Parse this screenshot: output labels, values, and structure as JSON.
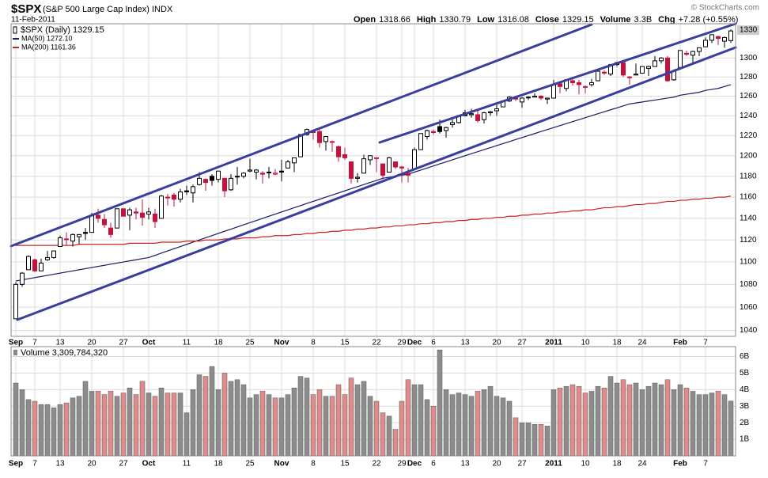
{
  "header": {
    "symbol": "$SPX",
    "name": "(S&P 500 Large Cap Index) INDX",
    "date": "11-Feb-2011",
    "credit": "© StockCharts.com",
    "quote": [
      [
        "Open",
        "1318.66"
      ],
      [
        "High",
        "1330.79"
      ],
      [
        "Low",
        "1316.08"
      ],
      [
        "Close",
        "1329.15"
      ],
      [
        "Volume",
        "3.3B"
      ],
      [
        "Chg",
        "+7.28 (+0.55%)"
      ]
    ]
  },
  "chart_data": [
    {
      "type": "candlestick",
      "legend_label": "$SPX (Daily) 1329.15",
      "categories": [
        "Sep",
        null,
        null,
        "7",
        null,
        null,
        null,
        "13",
        null,
        null,
        null,
        null,
        "20",
        null,
        null,
        null,
        null,
        "27",
        null,
        null,
        null,
        "Oct",
        null,
        null,
        null,
        null,
        null,
        "11",
        null,
        null,
        null,
        null,
        "18",
        null,
        null,
        null,
        null,
        "25",
        null,
        null,
        null,
        null,
        "Nov",
        null,
        null,
        null,
        null,
        "8",
        null,
        null,
        null,
        null,
        "15",
        null,
        null,
        null,
        null,
        "22",
        null,
        null,
        null,
        "29",
        null,
        "Dec",
        null,
        null,
        "6",
        null,
        null,
        null,
        null,
        "13",
        null,
        null,
        null,
        null,
        "20",
        null,
        null,
        null,
        "27",
        null,
        null,
        null,
        null,
        "2011",
        null,
        null,
        null,
        null,
        "10",
        null,
        null,
        null,
        null,
        "18",
        null,
        null,
        null,
        "24",
        null,
        null,
        null,
        null,
        null,
        "Feb",
        null,
        null,
        null,
        "7",
        null,
        null,
        null,
        null
      ],
      "open": [
        1050,
        1080,
        1093,
        1102,
        1092,
        1102,
        1104,
        1114,
        1121,
        1119,
        1123,
        1127,
        1127,
        1143,
        1139,
        1131,
        1131,
        1149,
        1143,
        1146,
        1145,
        1144,
        1144,
        1140,
        1160,
        1162,
        1158,
        1166,
        1164,
        1172,
        1177,
        1180,
        1177,
        1178,
        1167,
        1180,
        1180,
        1185,
        1184,
        1183,
        1184,
        1182,
        1185,
        1188,
        1193,
        1199,
        1221,
        1224,
        1224,
        1214,
        1214,
        1209,
        1201,
        1194,
        1178,
        1183,
        1196,
        1198,
        1192,
        1184,
        1194,
        1189,
        1183,
        1187,
        1206,
        1219,
        1224,
        1229,
        1225,
        1231,
        1233,
        1243,
        1241,
        1241,
        1236,
        1243,
        1245,
        1249,
        1255,
        1258,
        1254,
        1259,
        1259,
        1260,
        1257,
        1258,
        1273,
        1268,
        1276,
        1274,
        1270,
        1272,
        1276,
        1285,
        1283,
        1293,
        1295,
        1280,
        1282,
        1284,
        1289,
        1291,
        1297,
        1300,
        1277,
        1290,
        1305,
        1303,
        1307,
        1312,
        1319,
        1323,
        1318,
        1318.66
      ],
      "high": [
        1082,
        1091,
        1106,
        1103,
        1103,
        1110,
        1110,
        1124,
        1127,
        1126,
        1125,
        1131,
        1145,
        1149,
        1144,
        1136,
        1149,
        1149,
        1150,
        1150,
        1158,
        1150,
        1149,
        1162,
        1163,
        1164,
        1168,
        1171,
        1172,
        1184,
        1178,
        1182,
        1185,
        1178,
        1182,
        1189,
        1184,
        1197,
        1187,
        1185,
        1189,
        1187,
        1196,
        1196,
        1198,
        1221,
        1227,
        1225,
        1226,
        1219,
        1215,
        1210,
        1208,
        1194,
        1183,
        1201,
        1200,
        1198,
        1192,
        1199,
        1194,
        1190,
        1188,
        1208,
        1222,
        1226,
        1226,
        1236,
        1229,
        1236,
        1241,
        1246,
        1247,
        1245,
        1244,
        1245,
        1251,
        1255,
        1260,
        1259,
        1259,
        1260,
        1263,
        1261,
        1258,
        1277,
        1274,
        1277,
        1278,
        1277,
        1271,
        1278,
        1286,
        1287,
        1293,
        1296,
        1295,
        1281,
        1294,
        1291,
        1292,
        1302,
        1301,
        1302,
        1288,
        1308,
        1308,
        1308,
        1311,
        1322,
        1325,
        1324,
        1323,
        1330.79
      ],
      "low": [
        1050,
        1078,
        1093,
        1091,
        1092,
        1101,
        1103,
        1114,
        1115,
        1114,
        1116,
        1120,
        1127,
        1136,
        1131,
        1122,
        1131,
        1142,
        1129,
        1139,
        1133,
        1139,
        1131,
        1140,
        1152,
        1151,
        1155,
        1162,
        1155,
        1171,
        1166,
        1171,
        1174,
        1160,
        1166,
        1172,
        1178,
        1184,
        1177,
        1173,
        1178,
        1181,
        1175,
        1188,
        1184,
        1199,
        1220,
        1216,
        1208,
        1205,
        1204,
        1194,
        1196,
        1173,
        1174,
        1183,
        1191,
        1184,
        1177,
        1184,
        1187,
        1174,
        1174,
        1187,
        1206,
        1216,
        1221,
        1222,
        1218,
        1228,
        1232,
        1240,
        1238,
        1233,
        1232,
        1240,
        1240,
        1249,
        1254,
        1255,
        1248,
        1256,
        1259,
        1256,
        1252,
        1258,
        1263,
        1265,
        1271,
        1262,
        1263,
        1270,
        1276,
        1282,
        1281,
        1291,
        1280,
        1272,
        1282,
        1284,
        1281,
        1291,
        1294,
        1275,
        1276,
        1290,
        1302,
        1294,
        1302,
        1312,
        1316,
        1314,
        1311,
        1316.08
      ],
      "close": [
        1080,
        1090,
        1105,
        1092,
        1099,
        1104,
        1110,
        1122,
        1121,
        1125,
        1125,
        1126,
        1143,
        1140,
        1134,
        1125,
        1149,
        1142,
        1148,
        1145,
        1141,
        1146,
        1137,
        1161,
        1160,
        1158,
        1165,
        1165,
        1170,
        1178,
        1174,
        1176,
        1185,
        1166,
        1178,
        1180,
        1183,
        1186,
        1186,
        1182,
        1184,
        1183,
        1184,
        1194,
        1198,
        1221,
        1226,
        1223,
        1213,
        1219,
        1214,
        1199,
        1198,
        1178,
        1179,
        1197,
        1200,
        1198,
        1181,
        1198,
        1189,
        1188,
        1181,
        1206,
        1222,
        1225,
        1223,
        1224,
        1228,
        1233,
        1240,
        1240,
        1242,
        1235,
        1243,
        1244,
        1247,
        1255,
        1259,
        1257,
        1258,
        1259,
        1260,
        1258,
        1258,
        1272,
        1270,
        1277,
        1274,
        1272,
        1270,
        1274,
        1286,
        1284,
        1293,
        1295,
        1282,
        1280,
        1283,
        1291,
        1291,
        1297,
        1300,
        1276,
        1286,
        1308,
        1304,
        1307,
        1311,
        1319,
        1325,
        1321,
        1322,
        1329.15
      ],
      "series": [
        {
          "name": "MA(50) 1272.10",
          "color": "#1a1a66",
          "values": [
            1083,
            1084,
            1085,
            1086,
            1087,
            1088,
            1089,
            1090,
            1091,
            1092,
            1093,
            1094,
            1095,
            1096,
            1097,
            1098,
            1099,
            1100,
            1101,
            1102,
            1103,
            1104,
            1106,
            1108,
            1110,
            1112,
            1114,
            1116,
            1118,
            1120,
            1122,
            1124,
            1126,
            1128,
            1130,
            1132,
            1134,
            1136,
            1138,
            1140,
            1142,
            1144,
            1146,
            1148,
            1150,
            1152,
            1154,
            1156,
            1158,
            1160,
            1162,
            1164,
            1166,
            1168,
            1170,
            1172,
            1174,
            1176,
            1178,
            1179,
            1180,
            1181,
            1182,
            1184,
            1186,
            1188,
            1190,
            1192,
            1194,
            1196,
            1198,
            1200,
            1202,
            1204,
            1206,
            1208,
            1210,
            1212,
            1214,
            1216,
            1218,
            1220,
            1222,
            1224,
            1226,
            1228,
            1230,
            1232,
            1234,
            1236,
            1238,
            1240,
            1242,
            1244,
            1246,
            1248,
            1250,
            1252,
            1253,
            1254,
            1255,
            1256,
            1257,
            1258,
            1259,
            1261,
            1262,
            1263,
            1264,
            1266,
            1267,
            1268,
            1270,
            1272
          ]
        },
        {
          "name": "MA(200) 1161.36",
          "color": "#cc2222",
          "values": [
            1115,
            1115,
            1115,
            1115,
            1115,
            1115,
            1115,
            1115,
            1115,
            1115,
            1116,
            1116,
            1116,
            1116,
            1116,
            1116,
            1116,
            1116,
            1117,
            1117,
            1117,
            1117,
            1117,
            1118,
            1118,
            1118,
            1118,
            1119,
            1119,
            1119,
            1120,
            1120,
            1120,
            1121,
            1121,
            1121,
            1122,
            1122,
            1122,
            1123,
            1123,
            1124,
            1124,
            1124,
            1125,
            1125,
            1126,
            1126,
            1127,
            1127,
            1128,
            1128,
            1129,
            1129,
            1130,
            1130,
            1131,
            1131,
            1132,
            1132,
            1133,
            1133,
            1134,
            1134,
            1135,
            1135,
            1136,
            1136,
            1137,
            1137,
            1138,
            1138,
            1139,
            1139,
            1140,
            1140,
            1141,
            1141,
            1142,
            1142,
            1143,
            1143,
            1144,
            1144,
            1145,
            1145,
            1146,
            1146,
            1147,
            1147,
            1148,
            1148,
            1149,
            1150,
            1150,
            1151,
            1151,
            1152,
            1153,
            1153,
            1154,
            1154,
            1155,
            1156,
            1156,
            1157,
            1157,
            1158,
            1158,
            1159,
            1159,
            1160,
            1160,
            1161
          ]
        }
      ],
      "ylim": [
        1035,
        1337
      ],
      "log_scale": true,
      "yticks": [
        1040,
        1060,
        1080,
        1100,
        1120,
        1140,
        1160,
        1180,
        1200,
        1220,
        1240,
        1260,
        1280,
        1300
      ],
      "last_label": 1330,
      "up_color": "#000000",
      "down_color": "#c8103c",
      "grid": true
    },
    {
      "type": "bar",
      "label": "Volume 3,309,784,320",
      "values": [
        4.4,
        4.0,
        3.4,
        3.3,
        3.1,
        3.1,
        2.9,
        3.1,
        3.2,
        3.5,
        3.6,
        4.5,
        3.9,
        3.9,
        3.7,
        3.9,
        3.6,
        3.8,
        4.1,
        3.7,
        4.5,
        3.8,
        3.6,
        4.1,
        3.8,
        3.8,
        3.8,
        2.6,
        4.0,
        4.9,
        4.8,
        5.4,
        4.0,
        5.0,
        4.5,
        4.6,
        4.3,
        3.5,
        3.7,
        3.9,
        3.7,
        3.5,
        3.5,
        3.7,
        4.1,
        4.8,
        4.7,
        3.7,
        4.0,
        3.6,
        3.6,
        4.3,
        3.7,
        4.7,
        4.3,
        4.5,
        3.6,
        3.3,
        2.6,
        2.4,
        1.6,
        3.3,
        4.6,
        4.3,
        4.3,
        3.4,
        3.0,
        6.4,
        4.0,
        3.7,
        3.8,
        3.7,
        3.6,
        3.9,
        4.0,
        4.2,
        3.6,
        3.5,
        3.3,
        2.3,
        2.0,
        2.0,
        1.9,
        1.9,
        1.8,
        4.0,
        4.1,
        4.2,
        4.3,
        4.2,
        3.8,
        3.9,
        4.2,
        4.1,
        4.8,
        4.4,
        4.6,
        4.3,
        4.4,
        4.0,
        4.2,
        4.4,
        4.3,
        4.6,
        4.0,
        4.3,
        4.1,
        3.9,
        3.7,
        3.7,
        3.8,
        3.9,
        3.7,
        3.31
      ],
      "ylim": [
        0,
        6.6
      ],
      "yticks": [
        {
          "value": 1,
          "label": "1B"
        },
        {
          "value": 2,
          "label": "2B"
        },
        {
          "value": 3,
          "label": "3B"
        },
        {
          "value": 4,
          "label": "4B"
        },
        {
          "value": 5,
          "label": "5B"
        },
        {
          "value": 6,
          "label": "6B"
        }
      ],
      "up_color": "#8c8c8c",
      "down_color": "#e08a8a",
      "grid": true
    }
  ]
}
